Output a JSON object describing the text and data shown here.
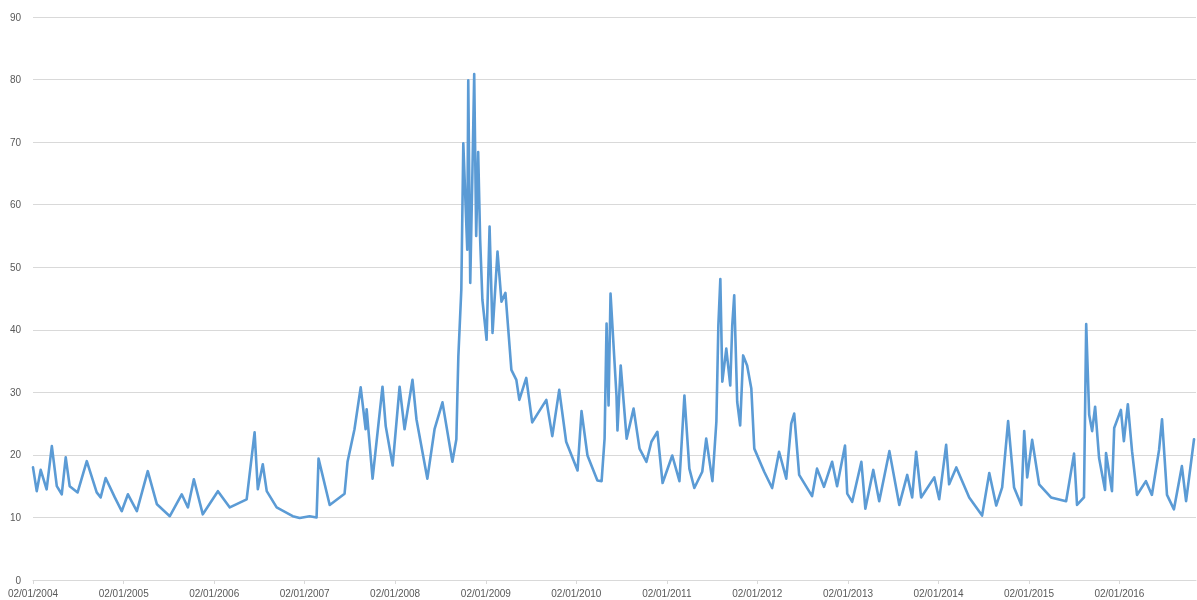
{
  "chart_data": {
    "type": "line",
    "grid": "y",
    "line_style": "solid",
    "marker": "none",
    "xlim": [
      "2004-01-02",
      "2016-11-06"
    ],
    "xticks": [
      {
        "value": "2004-01-02",
        "label": "02/01/2004"
      },
      {
        "value": "2005-01-02",
        "label": "02/01/2005"
      },
      {
        "value": "2006-01-02",
        "label": "02/01/2006"
      },
      {
        "value": "2007-01-02",
        "label": "02/01/2007"
      },
      {
        "value": "2008-01-02",
        "label": "02/01/2008"
      },
      {
        "value": "2009-01-02",
        "label": "02/01/2009"
      },
      {
        "value": "2010-01-02",
        "label": "02/01/2010"
      },
      {
        "value": "2011-01-02",
        "label": "02/01/2011"
      },
      {
        "value": "2012-01-02",
        "label": "02/01/2012"
      },
      {
        "value": "2013-01-02",
        "label": "02/01/2013"
      },
      {
        "value": "2014-01-02",
        "label": "02/01/2014"
      },
      {
        "value": "2015-01-02",
        "label": "02/01/2015"
      },
      {
        "value": "2016-01-02",
        "label": "02/01/2016"
      }
    ],
    "ylim": [
      0,
      90
    ],
    "yticks": [
      0,
      10,
      20,
      30,
      40,
      50,
      60,
      70,
      80,
      90
    ],
    "series": [
      {
        "color": "#5b9bd5",
        "x": [
          "2004-01-02",
          "2004-01-17",
          "2004-02-02",
          "2004-02-26",
          "2004-03-18",
          "2004-04-07",
          "2004-04-27",
          "2004-05-13",
          "2004-05-29",
          "2004-06-30",
          "2004-08-06",
          "2004-09-15",
          "2004-10-01",
          "2004-10-21",
          "2004-11-27",
          "2004-12-25",
          "2005-01-19",
          "2005-02-24",
          "2005-04-09",
          "2005-05-16",
          "2005-07-07",
          "2005-08-24",
          "2005-09-18",
          "2005-10-12",
          "2005-11-17",
          "2006-01-17",
          "2006-03-06",
          "2006-05-13",
          "2006-06-14",
          "2006-06-27",
          "2006-07-17",
          "2006-08-02",
          "2006-09-11",
          "2006-11-15",
          "2006-12-13",
          "2007-01-22",
          "2007-02-19",
          "2007-02-27",
          "2007-04-13",
          "2007-06-12",
          "2007-06-24",
          "2007-07-22",
          "2007-08-16",
          "2007-09-05",
          "2007-09-09",
          "2007-10-03",
          "2007-11-12",
          "2007-11-25",
          "2007-12-23",
          "2008-01-20",
          "2008-02-09",
          "2008-03-12",
          "2008-03-28",
          "2008-05-11",
          "2008-06-09",
          "2008-07-11",
          "2008-08-20",
          "2008-09-05",
          "2008-09-09",
          "2008-09-13",
          "2008-09-25",
          "2008-10-03",
          "2008-10-19",
          "2008-10-23",
          "2008-10-31",
          "2008-11-08",
          "2008-11-16",
          "2008-11-24",
          "2008-12-02",
          "2008-12-10",
          "2008-12-19",
          "2009-01-05",
          "2009-01-17",
          "2009-01-29",
          "2009-02-18",
          "2009-03-06",
          "2009-03-22",
          "2009-04-15",
          "2009-05-05",
          "2009-05-17",
          "2009-06-14",
          "2009-07-08",
          "2009-09-03",
          "2009-09-27",
          "2009-10-25",
          "2009-11-22",
          "2010-01-07",
          "2010-01-23",
          "2010-02-16",
          "2010-03-28",
          "2010-04-14",
          "2010-04-26",
          "2010-05-04",
          "2010-05-12",
          "2010-05-20",
          "2010-06-13",
          "2010-06-17",
          "2010-06-30",
          "2010-07-24",
          "2010-08-21",
          "2010-09-14",
          "2010-10-12",
          "2010-11-01",
          "2010-11-25",
          "2010-12-16",
          "2011-01-24",
          "2011-02-22",
          "2011-03-14",
          "2011-04-03",
          "2011-04-23",
          "2011-05-25",
          "2011-06-10",
          "2011-07-05",
          "2011-07-21",
          "2011-07-29",
          "2011-08-06",
          "2011-08-14",
          "2011-08-30",
          "2011-09-15",
          "2011-09-23",
          "2011-10-01",
          "2011-10-13",
          "2011-10-25",
          "2011-11-06",
          "2011-11-22",
          "2011-12-09",
          "2011-12-21",
          "2012-01-30",
          "2012-03-02",
          "2012-03-30",
          "2012-04-28",
          "2012-05-18",
          "2012-05-30",
          "2012-06-19",
          "2012-08-10",
          "2012-08-30",
          "2012-09-27",
          "2012-10-30",
          "2012-11-19",
          "2012-12-21",
          "2012-12-30",
          "2013-01-19",
          "2013-02-25",
          "2013-03-13",
          "2013-04-14",
          "2013-05-08",
          "2013-06-18",
          "2013-07-28",
          "2013-08-29",
          "2013-09-18",
          "2013-10-04",
          "2013-10-24",
          "2013-12-16",
          "2014-01-05",
          "2014-02-02",
          "2014-02-14",
          "2014-03-15",
          "2014-05-06",
          "2014-06-27",
          "2014-07-26",
          "2014-08-23",
          "2014-09-16",
          "2014-10-10",
          "2014-11-03",
          "2014-12-02",
          "2014-12-14",
          "2014-12-26",
          "2015-01-15",
          "2015-02-12",
          "2015-04-01",
          "2015-06-01",
          "2015-07-03",
          "2015-07-15",
          "2015-08-12",
          "2015-08-21",
          "2015-09-02",
          "2015-09-14",
          "2015-09-26",
          "2015-10-12",
          "2015-11-05",
          "2015-11-09",
          "2015-12-03",
          "2015-12-12",
          "2016-01-08",
          "2016-01-20",
          "2016-02-05",
          "2016-02-22",
          "2016-03-13",
          "2016-04-18",
          "2016-05-12",
          "2016-06-10",
          "2016-06-22",
          "2016-07-12",
          "2016-08-09",
          "2016-09-10",
          "2016-09-27",
          "2016-10-29"
        ],
        "values": [
          18.0,
          14.2,
          17.6,
          14.5,
          21.4,
          15.0,
          13.7,
          19.6,
          15.0,
          14.0,
          19.0,
          14.0,
          13.2,
          16.3,
          13.2,
          11.0,
          13.7,
          11.0,
          17.4,
          12.1,
          10.2,
          13.7,
          11.6,
          16.1,
          10.5,
          14.2,
          11.6,
          12.9,
          23.6,
          14.5,
          18.5,
          14.2,
          11.6,
          10.2,
          9.9,
          10.2,
          10.0,
          19.4,
          12.0,
          13.8,
          18.9,
          24.1,
          30.8,
          24.1,
          27.3,
          16.2,
          30.9,
          24.6,
          18.3,
          30.9,
          24.1,
          32.0,
          25.7,
          16.2,
          24.1,
          28.4,
          18.9,
          22.5,
          29.3,
          35.7,
          46.4,
          69.8,
          52.8,
          79.9,
          47.5,
          63.5,
          80.9,
          55.0,
          68.4,
          54.4,
          44.8,
          38.4,
          56.5,
          39.5,
          52.5,
          44.5,
          45.9,
          33.6,
          32.0,
          28.8,
          32.3,
          25.2,
          28.8,
          23.0,
          30.4,
          22.1,
          17.5,
          27.0,
          19.9,
          15.9,
          15.8,
          22.6,
          41.0,
          27.9,
          45.8,
          29.5,
          23.9,
          34.3,
          22.6,
          27.4,
          21.0,
          18.9,
          22.1,
          23.7,
          15.5,
          19.9,
          15.8,
          29.5,
          17.8,
          14.7,
          17.3,
          22.6,
          15.8,
          25.3,
          40.7,
          48.1,
          31.7,
          37.0,
          31.1,
          40.7,
          45.5,
          28.5,
          24.7,
          35.9,
          34.3,
          30.6,
          21.0,
          17.3,
          14.7,
          20.5,
          16.2,
          25.0,
          26.6,
          16.8,
          13.4,
          17.8,
          14.9,
          18.9,
          15.0,
          21.5,
          13.8,
          12.5,
          18.9,
          11.4,
          17.6,
          12.6,
          20.6,
          12.0,
          16.8,
          13.2,
          20.5,
          13.2,
          16.4,
          12.9,
          21.6,
          15.3,
          18.0,
          13.2,
          10.3,
          17.1,
          11.9,
          14.8,
          25.4,
          14.8,
          12.0,
          23.8,
          16.4,
          22.4,
          15.3,
          13.2,
          12.6,
          20.2,
          12.0,
          13.2,
          40.9,
          26.4,
          23.8,
          27.7,
          19.5,
          14.4,
          20.3,
          14.2,
          24.3,
          27.2,
          22.2,
          28.1,
          20.6,
          13.6,
          15.8,
          13.6,
          20.8,
          25.7,
          13.6,
          11.3,
          18.2,
          12.6,
          22.5
        ]
      }
    ]
  }
}
